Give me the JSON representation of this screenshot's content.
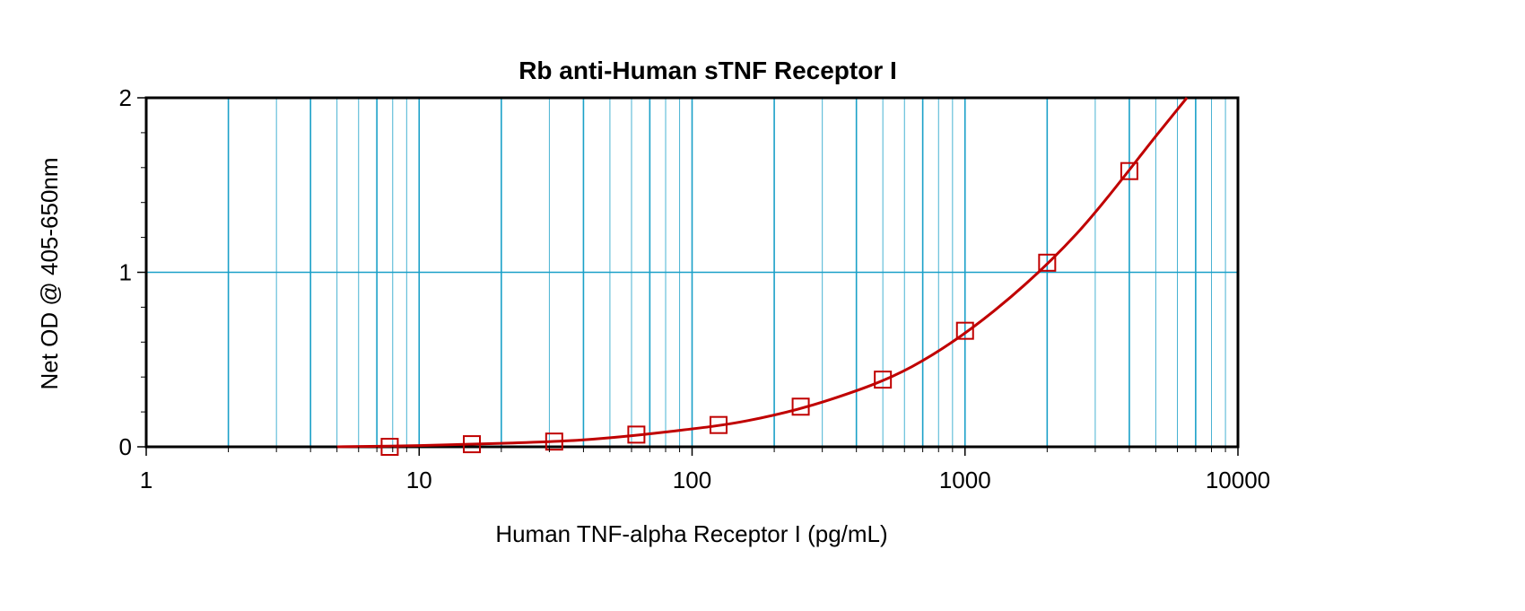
{
  "chart_data": {
    "type": "scatter",
    "title": "Rb anti-Human sTNF Receptor I",
    "xlabel": "Human TNF-alpha Receptor I (pg/mL)",
    "ylabel": "Net OD @ 405-650nm",
    "xscale": "log",
    "xlim": [
      1,
      10000
    ],
    "ylim": [
      0,
      2
    ],
    "x_ticks": [
      1,
      10,
      100,
      1000,
      10000
    ],
    "x_tick_labels": [
      "1",
      "10",
      "100",
      "1000",
      "10000"
    ],
    "y_ticks": [
      0,
      1,
      2
    ],
    "y_tick_labels": [
      "0",
      "1",
      "2"
    ],
    "grid": true,
    "series": [
      {
        "marker": "square",
        "color": "#c00000",
        "points": [
          {
            "x": 7.8,
            "y": 0.0
          },
          {
            "x": 15.6,
            "y": 0.015
          },
          {
            "x": 31.25,
            "y": 0.03
          },
          {
            "x": 62.5,
            "y": 0.07
          },
          {
            "x": 125,
            "y": 0.125
          },
          {
            "x": 250,
            "y": 0.23
          },
          {
            "x": 500,
            "y": 0.385
          },
          {
            "x": 1000,
            "y": 0.665
          },
          {
            "x": 2000,
            "y": 1.055
          },
          {
            "x": 4000,
            "y": 1.58
          }
        ]
      }
    ],
    "fit_curve": {
      "color": "#c00000",
      "points": [
        {
          "x": 5,
          "y": 0.0
        },
        {
          "x": 10,
          "y": 0.007
        },
        {
          "x": 20,
          "y": 0.02
        },
        {
          "x": 40,
          "y": 0.04
        },
        {
          "x": 80,
          "y": 0.085
        },
        {
          "x": 160,
          "y": 0.15
        },
        {
          "x": 320,
          "y": 0.27
        },
        {
          "x": 640,
          "y": 0.46
        },
        {
          "x": 1280,
          "y": 0.78
        },
        {
          "x": 2560,
          "y": 1.22
        },
        {
          "x": 5120,
          "y": 1.8
        },
        {
          "x": 6500,
          "y": 2.0
        }
      ]
    },
    "grid_color": "#1aa0c8"
  }
}
